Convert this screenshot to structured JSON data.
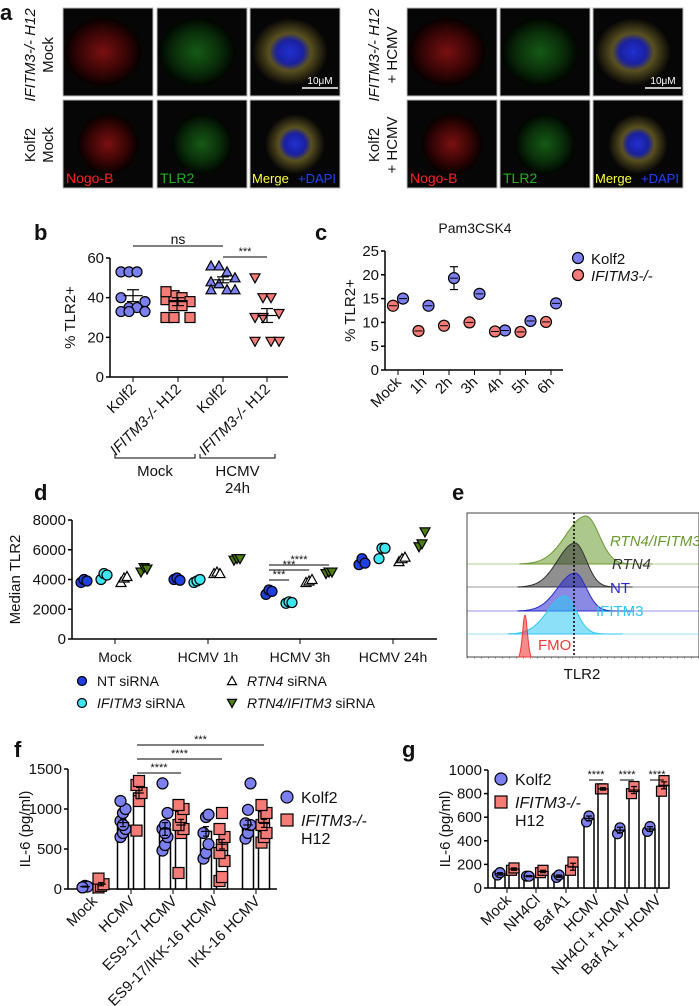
{
  "panel_letters": {
    "a": "a",
    "b": "b",
    "c": "c",
    "d": "d",
    "e": "e",
    "f": "f",
    "g": "g"
  },
  "panel_a": {
    "row_labels": {
      "left_top_line1": "IFITM3-/- H12",
      "left_top_line2": "Mock",
      "left_bottom_line1": "Kolf2",
      "left_bottom_line2": "Mock",
      "right_top_line1": "IFITM3-/- H12",
      "right_top_line2": "+ HCMV",
      "right_bottom_line1": "Kolf2",
      "right_bottom_line2": "+ HCMV"
    },
    "channels": {
      "nogo": "Nogo-B",
      "tlr2": "TLR2",
      "merge": "Merge",
      "dapi": "+DAPI"
    },
    "scale_bar": "10μM",
    "colors": {
      "nogo": "#ff2020",
      "tlr2": "#20b020",
      "merge": "#ffff40",
      "dapi": "#2040ff"
    }
  },
  "chart_data": [
    {
      "id": "b",
      "type": "scatter",
      "ylabel": "% TLR2+",
      "ylim": [
        0,
        60
      ],
      "yticks": [
        0,
        20,
        40,
        60
      ],
      "categories": [
        "Kolf2",
        "IFITM3-/- H12",
        "Kolf2",
        "IFITM3-/- H12"
      ],
      "groups": [
        {
          "label": "Mock"
        },
        {
          "label": "HCMV",
          "label2": "24h"
        }
      ],
      "series": [
        {
          "name": "Kolf2 Mock",
          "marker": "circle",
          "color": "#7b7ff0",
          "values": [
            53,
            53,
            53,
            38,
            40,
            35,
            35,
            33,
            33,
            33
          ],
          "mean": 41,
          "sem": 3
        },
        {
          "name": "IFITM3-/- H12 Mock",
          "marker": "square",
          "color": "#f47b76",
          "values": [
            39,
            41,
            40,
            38,
            43,
            36,
            36,
            30,
            30,
            30
          ],
          "mean": 38,
          "sem": 2
        },
        {
          "name": "Kolf2 HCMV 24h",
          "marker": "triangle-up",
          "color": "#7b7ff0",
          "values": [
            56,
            56,
            53,
            50,
            48,
            47,
            44,
            44,
            44
          ],
          "mean": 49,
          "sem": 1.5
        },
        {
          "name": "IFITM3-/- H12 HCMV 24h",
          "marker": "triangle-down",
          "color": "#f47b76",
          "values": [
            50,
            40,
            40,
            32,
            30,
            30,
            18,
            18,
            18
          ],
          "mean": 31,
          "sem": 3.5
        }
      ],
      "significance": [
        {
          "from": 0,
          "to": 2,
          "label": "ns"
        },
        {
          "from": 2,
          "to": 3,
          "label": "***"
        }
      ]
    },
    {
      "id": "c",
      "type": "scatter",
      "title": "Pam3CSK4",
      "ylabel": "% TLR2+",
      "ylim": [
        0,
        25
      ],
      "yticks": [
        0,
        5,
        10,
        15,
        20,
        25
      ],
      "categories": [
        "Mock",
        "1h",
        "2h",
        "3h",
        "4h",
        "5h",
        "6h"
      ],
      "series": [
        {
          "name": "Kolf2",
          "color": "#7b7ff0",
          "values": [
            15,
            13.5,
            19.3,
            16,
            8.3,
            10.3,
            14
          ],
          "err": [
            0.6,
            0.5,
            2.4,
            0.6,
            0.6,
            0.9,
            0.7
          ]
        },
        {
          "name": "IFITM3-/-",
          "color": "#f47b76",
          "values": [
            13.5,
            8.2,
            9.3,
            10,
            8.1,
            8,
            10.1
          ],
          "err": [
            0,
            0.5,
            0.5,
            0.9,
            0.6,
            0.3,
            0.6
          ]
        }
      ]
    },
    {
      "id": "d",
      "type": "scatter",
      "ylabel": "Median TLR2",
      "ylim": [
        0,
        8000
      ],
      "yticks": [
        0,
        2000,
        4000,
        6000,
        8000
      ],
      "categories": [
        "Mock",
        "HCMV 1h",
        "HCMV 3h",
        "HCMV 24h"
      ],
      "series": [
        {
          "name": "NT",
          "name_suffix": " siRNA",
          "italic": false,
          "marker": "circle",
          "color": "#1f3fe0",
          "values": [
            [
              3800,
              4000,
              3900
            ],
            [
              4000,
              4100,
              3950
            ],
            [
              3000,
              3300,
              3200
            ],
            [
              5000,
              5400,
              5100
            ]
          ]
        },
        {
          "name": "IFITM3",
          "name_suffix": " siRNA",
          "italic": true,
          "marker": "circle",
          "color": "#3ee6f0",
          "values": [
            [
              4000,
              4400,
              4300
            ],
            [
              3800,
              3900,
              4000
            ],
            [
              2400,
              2500,
              2450
            ],
            [
              5400,
              6100,
              6100
            ]
          ]
        },
        {
          "name": "RTN4",
          "name_suffix": " siRNA",
          "italic": true,
          "marker": "triangle-up",
          "color": "#ffffff",
          "values": [
            [
              3800,
              4100,
              4200
            ],
            [
              4400,
              4500,
              4400
            ],
            [
              3800,
              3900,
              4000
            ],
            [
              5200,
              5400,
              5500
            ]
          ]
        },
        {
          "name": "RTN4/IFITM3",
          "name_suffix": " siRNA",
          "italic": true,
          "marker": "triangle-down",
          "color": "#4e7d12",
          "values": [
            [
              4500,
              4800,
              4700
            ],
            [
              5300,
              5400,
              5400
            ],
            [
              4400,
              4500,
              4500
            ],
            [
              6200,
              6400,
              7200
            ]
          ]
        }
      ],
      "significance": [
        {
          "group": 2,
          "from": 0,
          "to": 1,
          "label": "***"
        },
        {
          "group": 2,
          "from": 0,
          "to": 2,
          "label": "***"
        },
        {
          "group": 2,
          "from": 0,
          "to": 3,
          "label": "****"
        }
      ]
    },
    {
      "id": "e",
      "type": "area",
      "xlabel": "TLR2",
      "series": [
        {
          "name": "RTN4/IFITM3",
          "italic": true,
          "color": "#6a9a2e"
        },
        {
          "name": "RTN4",
          "italic": true,
          "color": "#333333"
        },
        {
          "name": "NT",
          "italic": false,
          "color": "#2a2ad0"
        },
        {
          "name": "IFITM3",
          "italic": false,
          "color": "#2ec8f2"
        },
        {
          "name": "FMO",
          "italic": false,
          "color": "#f03a3a"
        }
      ]
    },
    {
      "id": "f",
      "type": "bar",
      "ylabel": "IL-6 (pg/ml)",
      "ylim": [
        0,
        1500
      ],
      "yticks": [
        0,
        500,
        1000,
        1500
      ],
      "categories": [
        "Mock",
        "HCMV",
        "ES9-17 HCMV",
        "ES9-17/IKK-16 HCMV",
        "IKK-16 HCMV"
      ],
      "series": [
        {
          "name": "Kolf2",
          "marker": "circle",
          "color": "#7b7ff0",
          "values": [
            30,
            830,
            750,
            720,
            800
          ],
          "sem": [
            5,
            50,
            80,
            60,
            60
          ],
          "points": [
            [
              20,
              40,
              30,
              20
            ],
            [
              650,
              700,
              750,
              850,
              950,
              1000,
              1100,
              800
            ],
            [
              480,
              550,
              650,
              750,
              800,
              950,
              1320,
              700
            ],
            [
              380,
              450,
              560,
              700,
              900,
              930
            ],
            [
              630,
              700,
              800,
              820,
              990,
              1320
            ]
          ]
        },
        {
          "name": "IFITM3-/-",
          "name2": "H12",
          "marker": "square",
          "color": "#f47b76",
          "values": [
            60,
            1200,
            800,
            560,
            820
          ],
          "sem": [
            20,
            70,
            70,
            60,
            50
          ],
          "points": [
            [
              20,
              40,
              60,
              130
            ],
            [
              730,
              1100,
              1200,
              1300,
              1350
            ],
            [
              200,
              700,
              750,
              800,
              900,
              1000,
              1050
            ],
            [
              100,
              150,
              350,
              450,
              550,
              650,
              750,
              950
            ],
            [
              580,
              650,
              700,
              800,
              900,
              950,
              1050
            ]
          ]
        }
      ],
      "significance": [
        {
          "from": 1,
          "to": 2,
          "label": "****"
        },
        {
          "from": 1,
          "to": 3,
          "label": "****"
        },
        {
          "from": 1,
          "to": 4,
          "label": "***"
        }
      ]
    },
    {
      "id": "g",
      "type": "bar",
      "ylabel": "IL-6 (pg/ml)",
      "ylim": [
        0,
        1000
      ],
      "yticks": [
        0,
        200,
        400,
        600,
        800,
        1000
      ],
      "categories": [
        "Mock",
        "NH4Cl",
        "Baf A1",
        "HCMV",
        "NH4Cl + HCMV",
        "Baf A1 + HCMV"
      ],
      "series": [
        {
          "name": "Kolf2",
          "marker": "circle",
          "color": "#7b7ff0",
          "values": [
            120,
            100,
            100,
            590,
            490,
            500
          ],
          "sem": [
            10,
            5,
            10,
            20,
            25,
            20
          ],
          "points": [
            [
              110,
              130
            ],
            [
              100,
              100
            ],
            [
              90,
              110
            ],
            [
              560,
              610
            ],
            [
              460,
              510
            ],
            [
              480,
              520
            ]
          ]
        },
        {
          "name": "IFITM3-/-",
          "name2": "H12",
          "marker": "square",
          "color": "#f47b76",
          "values": [
            160,
            140,
            180,
            840,
            830,
            870
          ],
          "sem": [
            10,
            10,
            30,
            10,
            30,
            30
          ],
          "points": [
            [
              150,
              170
            ],
            [
              130,
              150
            ],
            [
              150,
              220
            ],
            [
              840,
              840
            ],
            [
              800,
              860
            ],
            [
              820,
              910
            ]
          ]
        }
      ],
      "significance": [
        {
          "group": 3,
          "label": "****"
        },
        {
          "group": 4,
          "label": "****"
        },
        {
          "group": 5,
          "label": "****"
        }
      ]
    }
  ]
}
